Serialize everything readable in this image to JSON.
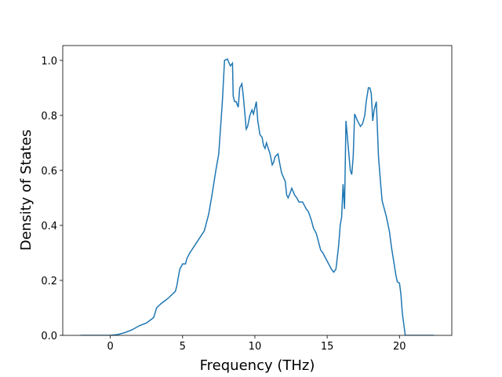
{
  "chart_data": {
    "type": "line",
    "x_label": "Frequency (THz)",
    "y_label": "Density of States",
    "color": "#1f77b4",
    "x": [
      -2.07,
      0,
      0.5,
      1,
      1.5,
      2,
      2.5,
      3,
      3.2,
      3.5,
      4,
      4.5,
      4.6,
      4.8,
      5,
      5.2,
      5.3,
      5.5,
      6,
      6.5,
      6.8,
      7,
      7.3,
      7.5,
      7.75,
      7.9,
      8.1,
      8.3,
      8.45,
      8.5,
      8.6,
      8.7,
      8.85,
      8.95,
      9.1,
      9.2,
      9.4,
      9.5,
      9.65,
      9.8,
      9.9,
      10.1,
      10.2,
      10.35,
      10.5,
      10.6,
      10.7,
      10.8,
      11.05,
      11.2,
      11.3,
      11.4,
      11.6,
      11.7,
      11.85,
      12.1,
      12.2,
      12.3,
      12.45,
      12.55,
      12.75,
      12.9,
      13.05,
      13.3,
      13.55,
      13.7,
      13.9,
      14.05,
      14.25,
      14.35,
      14.55,
      14.7,
      14.9,
      15.1,
      15.3,
      15.45,
      15.6,
      15.65,
      15.8,
      15.9,
      16.0,
      16.1,
      16.2,
      16.3,
      16.4,
      16.6,
      16.7,
      16.8,
      16.9,
      17.1,
      17.3,
      17.45,
      17.6,
      17.7,
      17.85,
      17.95,
      18.05,
      18.1,
      18.15,
      18.25,
      18.4,
      18.55,
      18.7,
      18.8,
      19.0,
      19.1,
      19.3,
      19.45,
      19.6,
      19.75,
      19.85,
      20.0,
      20.1,
      20.2,
      20.4,
      22.4
    ],
    "values": [
      0,
      0,
      0.003,
      0.01,
      0.02,
      0.035,
      0.045,
      0.065,
      0.1,
      0.115,
      0.135,
      0.16,
      0.18,
      0.24,
      0.26,
      0.26,
      0.28,
      0.3,
      0.34,
      0.38,
      0.44,
      0.5,
      0.6,
      0.66,
      0.85,
      1.0,
      1.005,
      0.98,
      0.99,
      0.87,
      0.85,
      0.85,
      0.83,
      0.9,
      0.915,
      0.87,
      0.75,
      0.76,
      0.8,
      0.82,
      0.805,
      0.85,
      0.78,
      0.73,
      0.72,
      0.69,
      0.68,
      0.7,
      0.66,
      0.62,
      0.63,
      0.65,
      0.66,
      0.63,
      0.59,
      0.56,
      0.51,
      0.5,
      0.52,
      0.535,
      0.51,
      0.5,
      0.485,
      0.485,
      0.46,
      0.45,
      0.42,
      0.39,
      0.37,
      0.35,
      0.31,
      0.3,
      0.28,
      0.26,
      0.24,
      0.23,
      0.24,
      0.26,
      0.33,
      0.4,
      0.43,
      0.55,
      0.46,
      0.78,
      0.72,
      0.6,
      0.585,
      0.65,
      0.805,
      0.78,
      0.76,
      0.77,
      0.8,
      0.85,
      0.9,
      0.9,
      0.88,
      0.83,
      0.78,
      0.82,
      0.85,
      0.65,
      0.55,
      0.49,
      0.45,
      0.43,
      0.38,
      0.32,
      0.27,
      0.22,
      0.195,
      0.19,
      0.15,
      0.08,
      0,
      0
    ],
    "xlim": [
      -3.29,
      23.62
    ],
    "ylim": [
      0,
      1.054
    ],
    "xticks": [
      0,
      5,
      10,
      15,
      20
    ],
    "yticks": [
      {
        "value": 0,
        "label": "0.0"
      },
      {
        "value": 0.2,
        "label": "0.2"
      },
      {
        "value": 0.4,
        "label": "0.4"
      },
      {
        "value": 0.6,
        "label": "0.6"
      },
      {
        "value": 0.8,
        "label": "0.8"
      },
      {
        "value": 1.0,
        "label": "1.0"
      }
    ],
    "grid": false
  }
}
